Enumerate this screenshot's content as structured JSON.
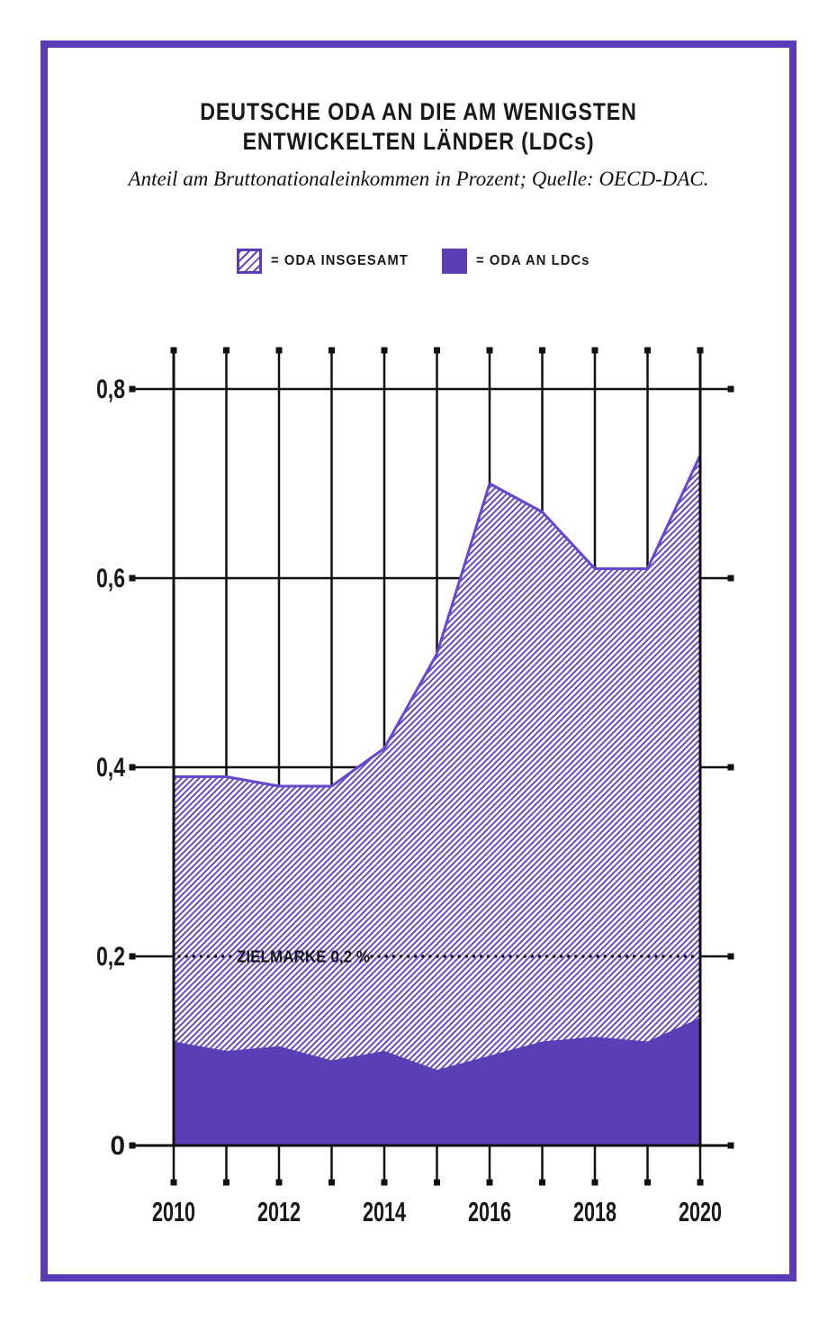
{
  "header": {
    "title_line1": "DEUTSCHE ODA AN DIE AM WENIGSTEN",
    "title_line2": "ENTWICKELTEN LÄNDER (LDCs)",
    "subtitle": "Anteil am Bruttonationaleinkommen in Prozent; Quelle: OECD-DAC."
  },
  "legend": {
    "items": [
      {
        "swatch": "hatched",
        "label": "= ODA INSGESAMT"
      },
      {
        "swatch": "solid",
        "label": "= ODA AN LDCs"
      }
    ]
  },
  "chart_data": {
    "type": "area",
    "x": [
      2010,
      2011,
      2012,
      2013,
      2014,
      2015,
      2016,
      2017,
      2018,
      2019,
      2020
    ],
    "series": [
      {
        "name": "ODA INSGESAMT",
        "style": "hatched",
        "values": [
          0.39,
          0.39,
          0.38,
          0.38,
          0.42,
          0.52,
          0.7,
          0.67,
          0.61,
          0.61,
          0.73
        ]
      },
      {
        "name": "ODA AN LDCs",
        "style": "solid",
        "values": [
          0.11,
          0.1,
          0.105,
          0.09,
          0.1,
          0.08,
          0.095,
          0.11,
          0.115,
          0.11,
          0.135
        ]
      }
    ],
    "ylim": [
      0,
      0.84
    ],
    "yticks": [
      0,
      0.2,
      0.4,
      0.6,
      0.8
    ],
    "ytick_labels": [
      "0",
      "0,2",
      "0,4",
      "0,6",
      "0,8"
    ],
    "xtick_labels": [
      "2010",
      "2012",
      "2014",
      "2016",
      "2018",
      "2020"
    ],
    "target_line": {
      "value": 0.2,
      "label": "ZIELMARKE 0,2 %",
      "style": "dotted"
    },
    "grid": true,
    "legend_position": "top",
    "colors": {
      "frame": "#5b3cb8",
      "solid_area": "#5b3eb5",
      "hatch_line": "#6549c4",
      "boundary_line": "#6847cf",
      "axis": "#111111",
      "text": "#191919"
    }
  }
}
